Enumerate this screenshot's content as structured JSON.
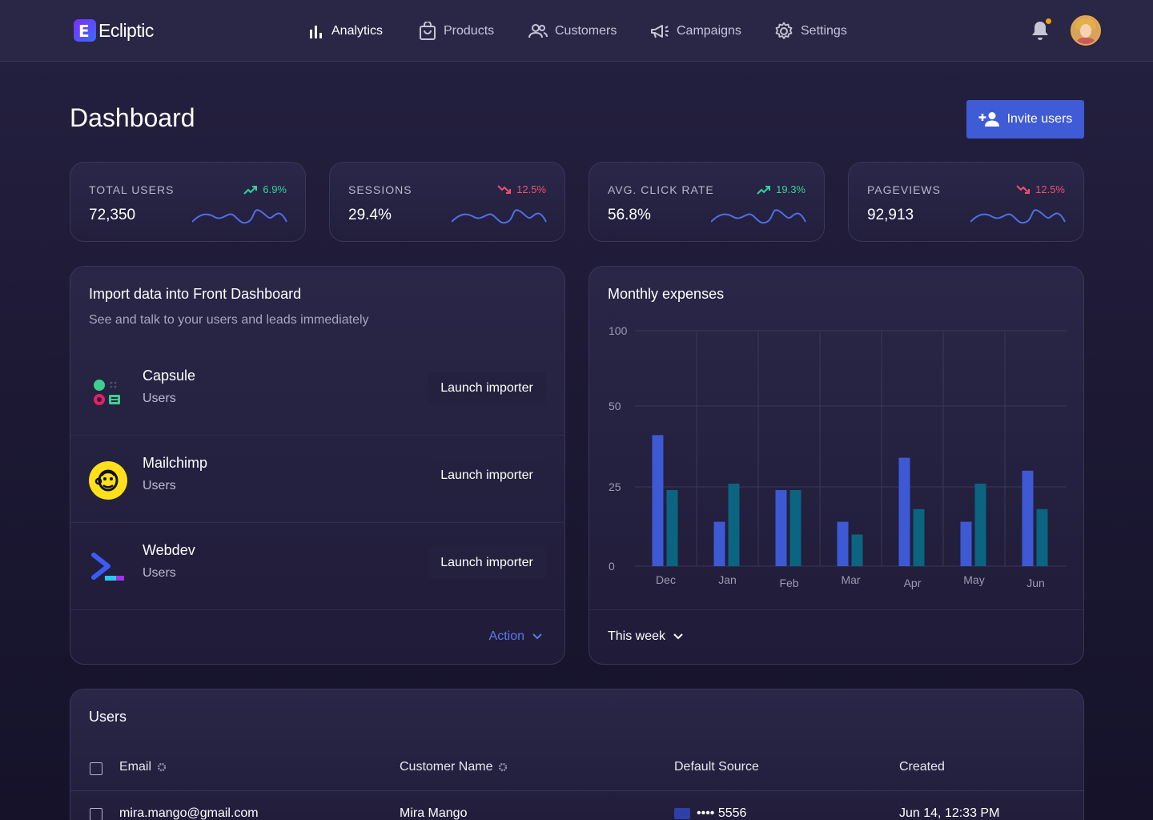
{
  "app": {
    "logo_letter": "E",
    "name": "Ecliptic"
  },
  "nav": {
    "analytics": "Analytics",
    "products": "Products",
    "customers": "Customers",
    "campaigns": "Campaigns",
    "settings": "Settings"
  },
  "page": {
    "title": "Dashboard",
    "invite_label": "Invite users"
  },
  "stats": [
    {
      "label": "TOTAL USERS",
      "value": "72,350",
      "change": "6.9%",
      "trend": "up"
    },
    {
      "label": "SESSIONS",
      "value": "29.4%",
      "change": "12.5%",
      "trend": "down"
    },
    {
      "label": "AVG. CLICK RATE",
      "value": "56.8%",
      "change": "19.3%",
      "trend": "up"
    },
    {
      "label": "PAGEVIEWS",
      "value": "92,913",
      "change": "12.5%",
      "trend": "down"
    }
  ],
  "importer": {
    "title": "Import data into Front Dashboard",
    "subtitle": "See and talk to your users and leads immediately",
    "items": [
      {
        "name": "Capsule",
        "sub": "Users",
        "button": "Launch importer",
        "icon": "capsule-logo-icon"
      },
      {
        "name": "Mailchimp",
        "sub": "Users",
        "button": "Launch importer",
        "icon": "mailchimp-logo-icon"
      },
      {
        "name": "Webdev",
        "sub": "Users",
        "button": "Launch importer",
        "icon": "webdev-logo-icon"
      }
    ],
    "action_label": "Action"
  },
  "expenses": {
    "title": "Monthly expenses",
    "period_label": "This week"
  },
  "chart_data": {
    "type": "bar",
    "title": "Monthly expenses",
    "categories": [
      "Dec",
      "Jan",
      "Feb",
      "Mar",
      "Apr",
      "May",
      "Jun"
    ],
    "series": [
      {
        "values": [
          41,
          14,
          24,
          14,
          34,
          14,
          30
        ],
        "color": "#3d59d4"
      },
      {
        "values": [
          24,
          26,
          24,
          10,
          18,
          26,
          18
        ],
        "color": "#0b6480"
      }
    ],
    "yticks": [
      "100",
      "50",
      "25",
      "0"
    ],
    "ylim": [
      0,
      100
    ],
    "grid": true
  },
  "users": {
    "title": "Users",
    "columns": [
      "Email",
      "Customer Name",
      "Default Source",
      "Created"
    ],
    "rows": [
      {
        "email": "mira.mango@gmail.com",
        "name": "Mira Mango",
        "source": "•••• 5556",
        "created": "Jun 14, 12:33 PM"
      }
    ]
  },
  "colors": {
    "accent": "#3f5bd6",
    "positive": "#34d399",
    "negative": "#f0506e",
    "link": "#5b7be8"
  }
}
